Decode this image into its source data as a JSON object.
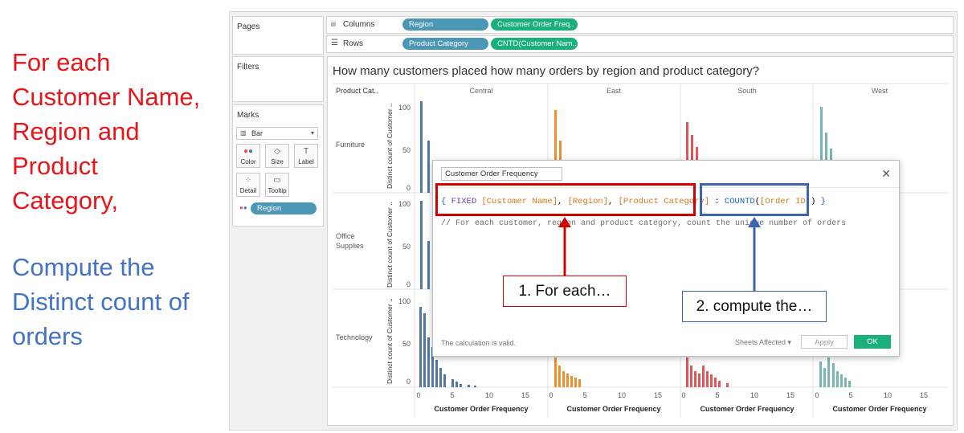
{
  "annotation": {
    "part1_lines": [
      "For each",
      "Customer Name,",
      "Region and",
      "Product",
      "Category,"
    ],
    "part2_lines": [
      "Compute the",
      "Distinct count of",
      "orders"
    ]
  },
  "panels": {
    "pages": "Pages",
    "filters": "Filters",
    "marks": "Marks",
    "mark_type": "Bar",
    "mark_buttons": [
      "Color",
      "Size",
      "Label",
      "Detail",
      "Tooltip"
    ],
    "color_pill": "Region"
  },
  "shelves": {
    "columns_label": "Columns",
    "rows_label": "Rows",
    "columns_pills": [
      "Region",
      "Customer Order Freq.."
    ],
    "rows_pills": [
      "Product Category",
      "CNTD(Customer Nam.."
    ]
  },
  "view": {
    "title": "How many customers placed how many orders by region and product category?",
    "row_header": "Product Cat..",
    "regions": [
      "Central",
      "East",
      "South",
      "West"
    ],
    "categories": [
      "Furniture",
      "Office Supplies",
      "Technology"
    ],
    "y_axis_label": "Distinct count of Customer ..",
    "y_ticks": [
      "100",
      "50",
      "0"
    ],
    "x_ticks": [
      "0",
      "5",
      "10",
      "15"
    ],
    "x_axis_label": "Customer Order Frequency",
    "region_colors": {
      "Central": "#4e79a7",
      "East": "#f28e2b",
      "South": "#e15759",
      "West": "#76b7b2"
    }
  },
  "dialog": {
    "name": "Customer Order Frequency",
    "close_icon": "close-icon",
    "code_line1": {
      "open": "{ ",
      "keyword": "FIXED",
      "field1": "[Customer Name]",
      "sep1": ", ",
      "field2": "[Region]",
      "sep2": ", ",
      "field3": "[Product Category]",
      "colon": " : ",
      "func": "COUNTD",
      "paren_open": "(",
      "field4": "[Order ID]",
      "paren_close": ")",
      "close": " }"
    },
    "comment": "// For each customer, region and product category, count the unique number of orders",
    "status": "The calculation is valid.",
    "sheets_affected": "Sheets Affected ▾",
    "apply": "Apply",
    "ok": "OK"
  },
  "callouts": {
    "first": "1. For each…",
    "second": "2. compute the…"
  }
}
